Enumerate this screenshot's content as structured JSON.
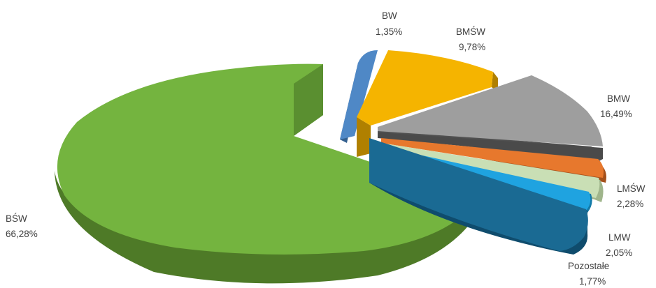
{
  "chart_data": {
    "type": "pie",
    "variant": "3d-exploded",
    "slices": [
      {
        "label": "BŚW",
        "value_text": "66,28%",
        "value": 66.28,
        "color": "#74b43f",
        "side": "#4e7a27"
      },
      {
        "label": "BW",
        "value_text": "1,35%",
        "value": 1.35,
        "color": "#4f88c6",
        "side": "#34608f"
      },
      {
        "label": "BMŚW",
        "value_text": "9,78%",
        "value": 9.78,
        "color": "#f5b400",
        "side": "#b08000"
      },
      {
        "label": "BMW",
        "value_text": "16,49%",
        "value": 16.49,
        "color": "#9e9e9e",
        "side": "#505050"
      },
      {
        "label": "",
        "value_text": "",
        "value": 0.0,
        "color": "#555555",
        "side": "#3a3a3a"
      },
      {
        "label": "LMŚW",
        "value_text": "2,28%",
        "value": 2.28,
        "color": "#e7782d",
        "side": "#a4501b"
      },
      {
        "label": "LMW",
        "value_text": "2,05%",
        "value": 2.05,
        "color": "#c9dfb5",
        "side": "#9fb58b"
      },
      {
        "label": "Pozostałe",
        "value_text": "1,77%",
        "value": 1.77,
        "color": "#1fa3e0",
        "side": "#137aa8"
      },
      {
        "label": "",
        "value_text": "",
        "value": 0.0,
        "color": "#1a6a93",
        "side": "#0f4c6d"
      }
    ]
  }
}
